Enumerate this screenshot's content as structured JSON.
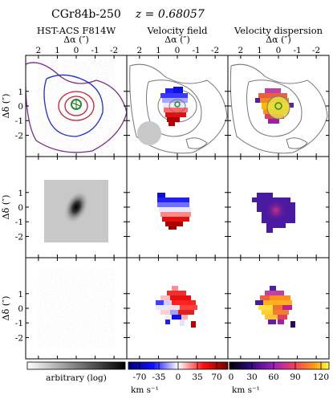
{
  "figure": {
    "object_name": "CGr84b-250",
    "redshift_label": "z = 0.68057",
    "columns": [
      "HST-ACS F814W",
      "Velocity field",
      "Velocity dispersion"
    ],
    "x_axis_label": "Δα (″)",
    "y_axis_label": "Δδ (″)",
    "x_ticks": [
      "2",
      "1",
      "0",
      "-1",
      "-2"
    ],
    "y_ticks": [
      "1",
      "0",
      "-1",
      "-2"
    ],
    "colorbars": [
      {
        "label": "arbitrary (log)",
        "ticks": []
      },
      {
        "label": "km s⁻¹",
        "ticks": [
          "-70",
          "-35",
          "0",
          "35",
          "70"
        ]
      },
      {
        "label": "km s⁻¹",
        "ticks": [
          "0",
          "30",
          "60",
          "90",
          "120"
        ]
      }
    ]
  },
  "colors": {
    "contour_outer": "#7a2a8c",
    "contour_mid": "#1e2fd6",
    "contour_inner": "#c41e3a",
    "contour_grey": "#777777",
    "velocity_neg": "#0000c8",
    "velocity_pos": "#c80000",
    "dispersion_low": "#1a0a5e",
    "dispersion_high": "#ffd000"
  }
}
